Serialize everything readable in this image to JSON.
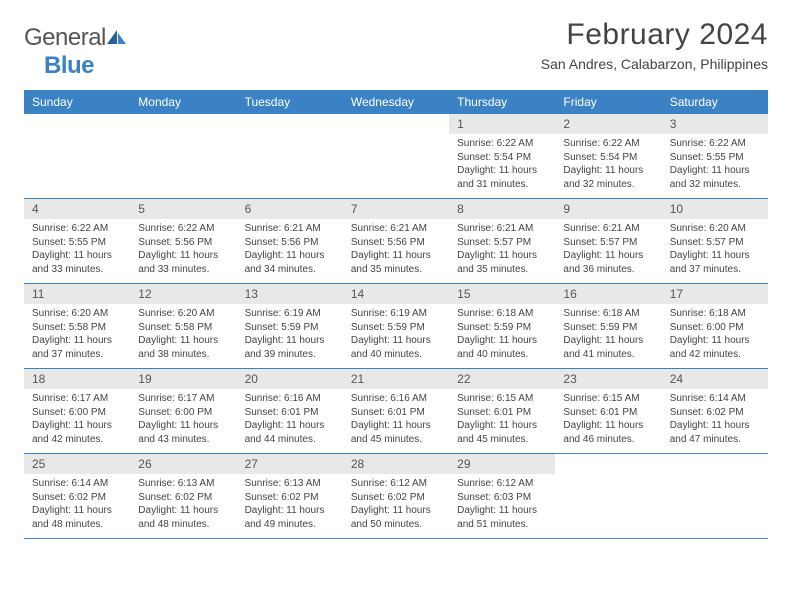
{
  "logo": {
    "text1": "General",
    "text2": "Blue"
  },
  "title": "February 2024",
  "location": "San Andres, Calabarzon, Philippines",
  "colors": {
    "header_bg": "#3b82c4",
    "header_text": "#ffffff",
    "daynum_bg": "#e8e8e8",
    "week_divider": "#3b82c4",
    "body_text": "#444444",
    "page_bg": "#ffffff"
  },
  "layout": {
    "columns": 7,
    "day_header_fontsize": 12,
    "daynum_fontsize": 12,
    "body_fontsize": 10,
    "title_fontsize": 30,
    "location_fontsize": 14
  },
  "day_headers": [
    "Sunday",
    "Monday",
    "Tuesday",
    "Wednesday",
    "Thursday",
    "Friday",
    "Saturday"
  ],
  "weeks": [
    [
      {
        "n": "",
        "empty": true
      },
      {
        "n": "",
        "empty": true
      },
      {
        "n": "",
        "empty": true
      },
      {
        "n": "",
        "empty": true
      },
      {
        "n": "1",
        "sunrise": "Sunrise: 6:22 AM",
        "sunset": "Sunset: 5:54 PM",
        "day1": "Daylight: 11 hours",
        "day2": "and 31 minutes."
      },
      {
        "n": "2",
        "sunrise": "Sunrise: 6:22 AM",
        "sunset": "Sunset: 5:54 PM",
        "day1": "Daylight: 11 hours",
        "day2": "and 32 minutes."
      },
      {
        "n": "3",
        "sunrise": "Sunrise: 6:22 AM",
        "sunset": "Sunset: 5:55 PM",
        "day1": "Daylight: 11 hours",
        "day2": "and 32 minutes."
      }
    ],
    [
      {
        "n": "4",
        "sunrise": "Sunrise: 6:22 AM",
        "sunset": "Sunset: 5:55 PM",
        "day1": "Daylight: 11 hours",
        "day2": "and 33 minutes."
      },
      {
        "n": "5",
        "sunrise": "Sunrise: 6:22 AM",
        "sunset": "Sunset: 5:56 PM",
        "day1": "Daylight: 11 hours",
        "day2": "and 33 minutes."
      },
      {
        "n": "6",
        "sunrise": "Sunrise: 6:21 AM",
        "sunset": "Sunset: 5:56 PM",
        "day1": "Daylight: 11 hours",
        "day2": "and 34 minutes."
      },
      {
        "n": "7",
        "sunrise": "Sunrise: 6:21 AM",
        "sunset": "Sunset: 5:56 PM",
        "day1": "Daylight: 11 hours",
        "day2": "and 35 minutes."
      },
      {
        "n": "8",
        "sunrise": "Sunrise: 6:21 AM",
        "sunset": "Sunset: 5:57 PM",
        "day1": "Daylight: 11 hours",
        "day2": "and 35 minutes."
      },
      {
        "n": "9",
        "sunrise": "Sunrise: 6:21 AM",
        "sunset": "Sunset: 5:57 PM",
        "day1": "Daylight: 11 hours",
        "day2": "and 36 minutes."
      },
      {
        "n": "10",
        "sunrise": "Sunrise: 6:20 AM",
        "sunset": "Sunset: 5:57 PM",
        "day1": "Daylight: 11 hours",
        "day2": "and 37 minutes."
      }
    ],
    [
      {
        "n": "11",
        "sunrise": "Sunrise: 6:20 AM",
        "sunset": "Sunset: 5:58 PM",
        "day1": "Daylight: 11 hours",
        "day2": "and 37 minutes."
      },
      {
        "n": "12",
        "sunrise": "Sunrise: 6:20 AM",
        "sunset": "Sunset: 5:58 PM",
        "day1": "Daylight: 11 hours",
        "day2": "and 38 minutes."
      },
      {
        "n": "13",
        "sunrise": "Sunrise: 6:19 AM",
        "sunset": "Sunset: 5:59 PM",
        "day1": "Daylight: 11 hours",
        "day2": "and 39 minutes."
      },
      {
        "n": "14",
        "sunrise": "Sunrise: 6:19 AM",
        "sunset": "Sunset: 5:59 PM",
        "day1": "Daylight: 11 hours",
        "day2": "and 40 minutes."
      },
      {
        "n": "15",
        "sunrise": "Sunrise: 6:18 AM",
        "sunset": "Sunset: 5:59 PM",
        "day1": "Daylight: 11 hours",
        "day2": "and 40 minutes."
      },
      {
        "n": "16",
        "sunrise": "Sunrise: 6:18 AM",
        "sunset": "Sunset: 5:59 PM",
        "day1": "Daylight: 11 hours",
        "day2": "and 41 minutes."
      },
      {
        "n": "17",
        "sunrise": "Sunrise: 6:18 AM",
        "sunset": "Sunset: 6:00 PM",
        "day1": "Daylight: 11 hours",
        "day2": "and 42 minutes."
      }
    ],
    [
      {
        "n": "18",
        "sunrise": "Sunrise: 6:17 AM",
        "sunset": "Sunset: 6:00 PM",
        "day1": "Daylight: 11 hours",
        "day2": "and 42 minutes."
      },
      {
        "n": "19",
        "sunrise": "Sunrise: 6:17 AM",
        "sunset": "Sunset: 6:00 PM",
        "day1": "Daylight: 11 hours",
        "day2": "and 43 minutes."
      },
      {
        "n": "20",
        "sunrise": "Sunrise: 6:16 AM",
        "sunset": "Sunset: 6:01 PM",
        "day1": "Daylight: 11 hours",
        "day2": "and 44 minutes."
      },
      {
        "n": "21",
        "sunrise": "Sunrise: 6:16 AM",
        "sunset": "Sunset: 6:01 PM",
        "day1": "Daylight: 11 hours",
        "day2": "and 45 minutes."
      },
      {
        "n": "22",
        "sunrise": "Sunrise: 6:15 AM",
        "sunset": "Sunset: 6:01 PM",
        "day1": "Daylight: 11 hours",
        "day2": "and 45 minutes."
      },
      {
        "n": "23",
        "sunrise": "Sunrise: 6:15 AM",
        "sunset": "Sunset: 6:01 PM",
        "day1": "Daylight: 11 hours",
        "day2": "and 46 minutes."
      },
      {
        "n": "24",
        "sunrise": "Sunrise: 6:14 AM",
        "sunset": "Sunset: 6:02 PM",
        "day1": "Daylight: 11 hours",
        "day2": "and 47 minutes."
      }
    ],
    [
      {
        "n": "25",
        "sunrise": "Sunrise: 6:14 AM",
        "sunset": "Sunset: 6:02 PM",
        "day1": "Daylight: 11 hours",
        "day2": "and 48 minutes."
      },
      {
        "n": "26",
        "sunrise": "Sunrise: 6:13 AM",
        "sunset": "Sunset: 6:02 PM",
        "day1": "Daylight: 11 hours",
        "day2": "and 48 minutes."
      },
      {
        "n": "27",
        "sunrise": "Sunrise: 6:13 AM",
        "sunset": "Sunset: 6:02 PM",
        "day1": "Daylight: 11 hours",
        "day2": "and 49 minutes."
      },
      {
        "n": "28",
        "sunrise": "Sunrise: 6:12 AM",
        "sunset": "Sunset: 6:02 PM",
        "day1": "Daylight: 11 hours",
        "day2": "and 50 minutes."
      },
      {
        "n": "29",
        "sunrise": "Sunrise: 6:12 AM",
        "sunset": "Sunset: 6:03 PM",
        "day1": "Daylight: 11 hours",
        "day2": "and 51 minutes."
      },
      {
        "n": "",
        "empty": true
      },
      {
        "n": "",
        "empty": true
      }
    ]
  ]
}
